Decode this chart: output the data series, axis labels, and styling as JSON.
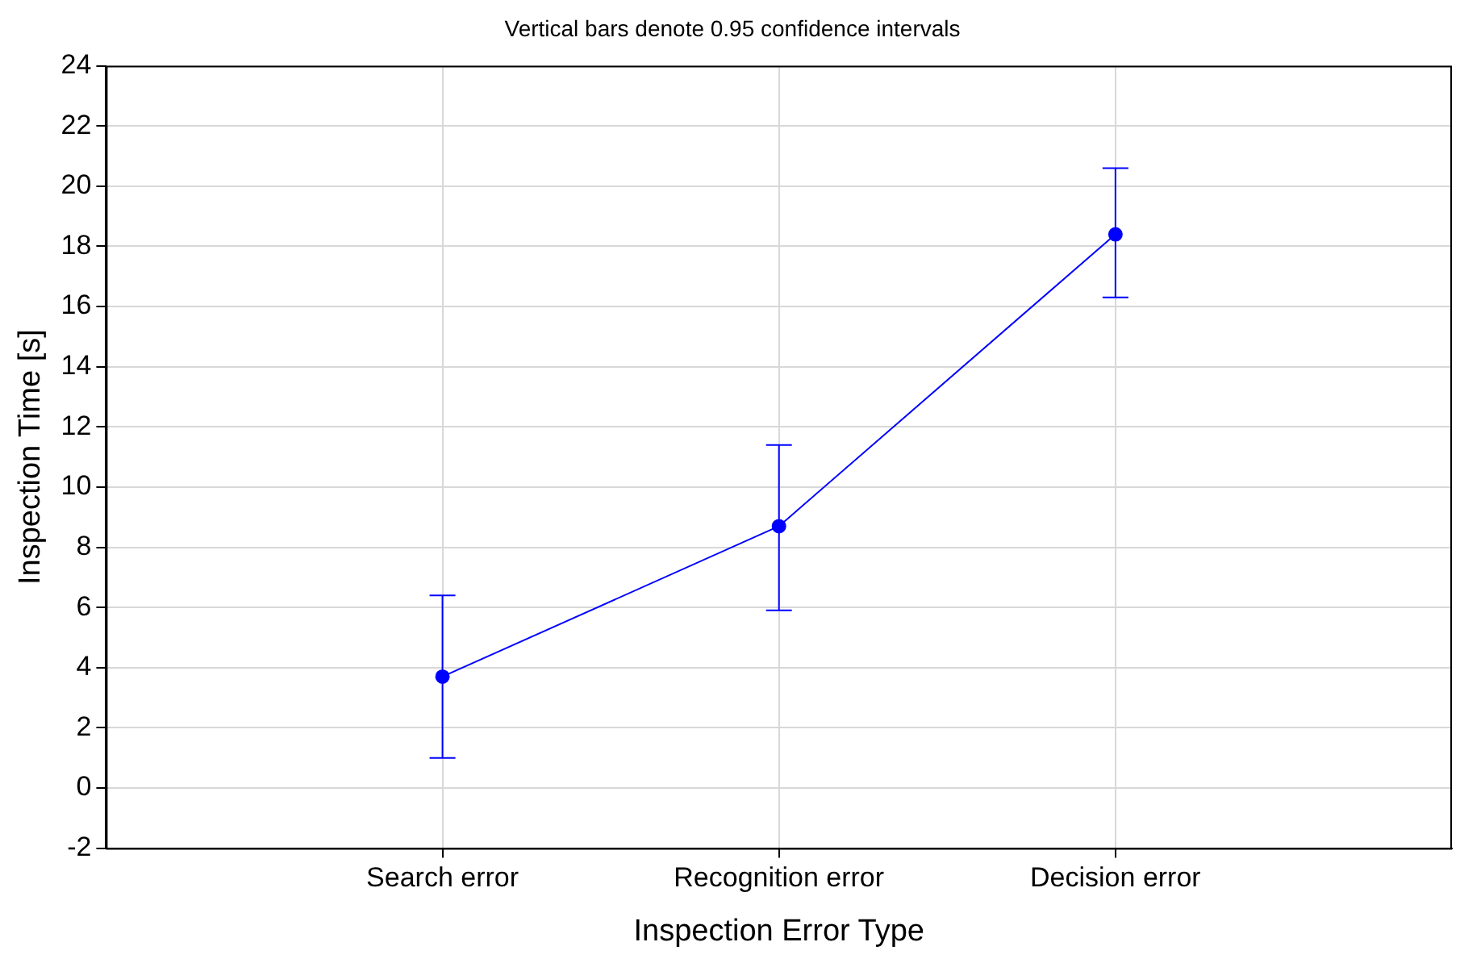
{
  "chart_data": {
    "type": "line",
    "title": "Vertical bars denote 0.95 confidence intervals",
    "xlabel": "Inspection Error Type",
    "ylabel": "Inspection Time [s]",
    "categories": [
      "Search error",
      "Recognition error",
      "Decision error"
    ],
    "series": [
      {
        "color": "#0000ff",
        "values": [
          3.7,
          8.7,
          18.4
        ],
        "errors": [
          [
            1.0,
            6.4
          ],
          [
            5.9,
            11.4
          ],
          [
            16.3,
            20.6
          ]
        ]
      }
    ],
    "ylim": [
      -2,
      24
    ],
    "yticks": [
      -2,
      0,
      2,
      4,
      6,
      8,
      10,
      12,
      14,
      16,
      18,
      20,
      22,
      24
    ],
    "grid": true,
    "legend": false,
    "marker": "circle",
    "line_style": "solid"
  }
}
